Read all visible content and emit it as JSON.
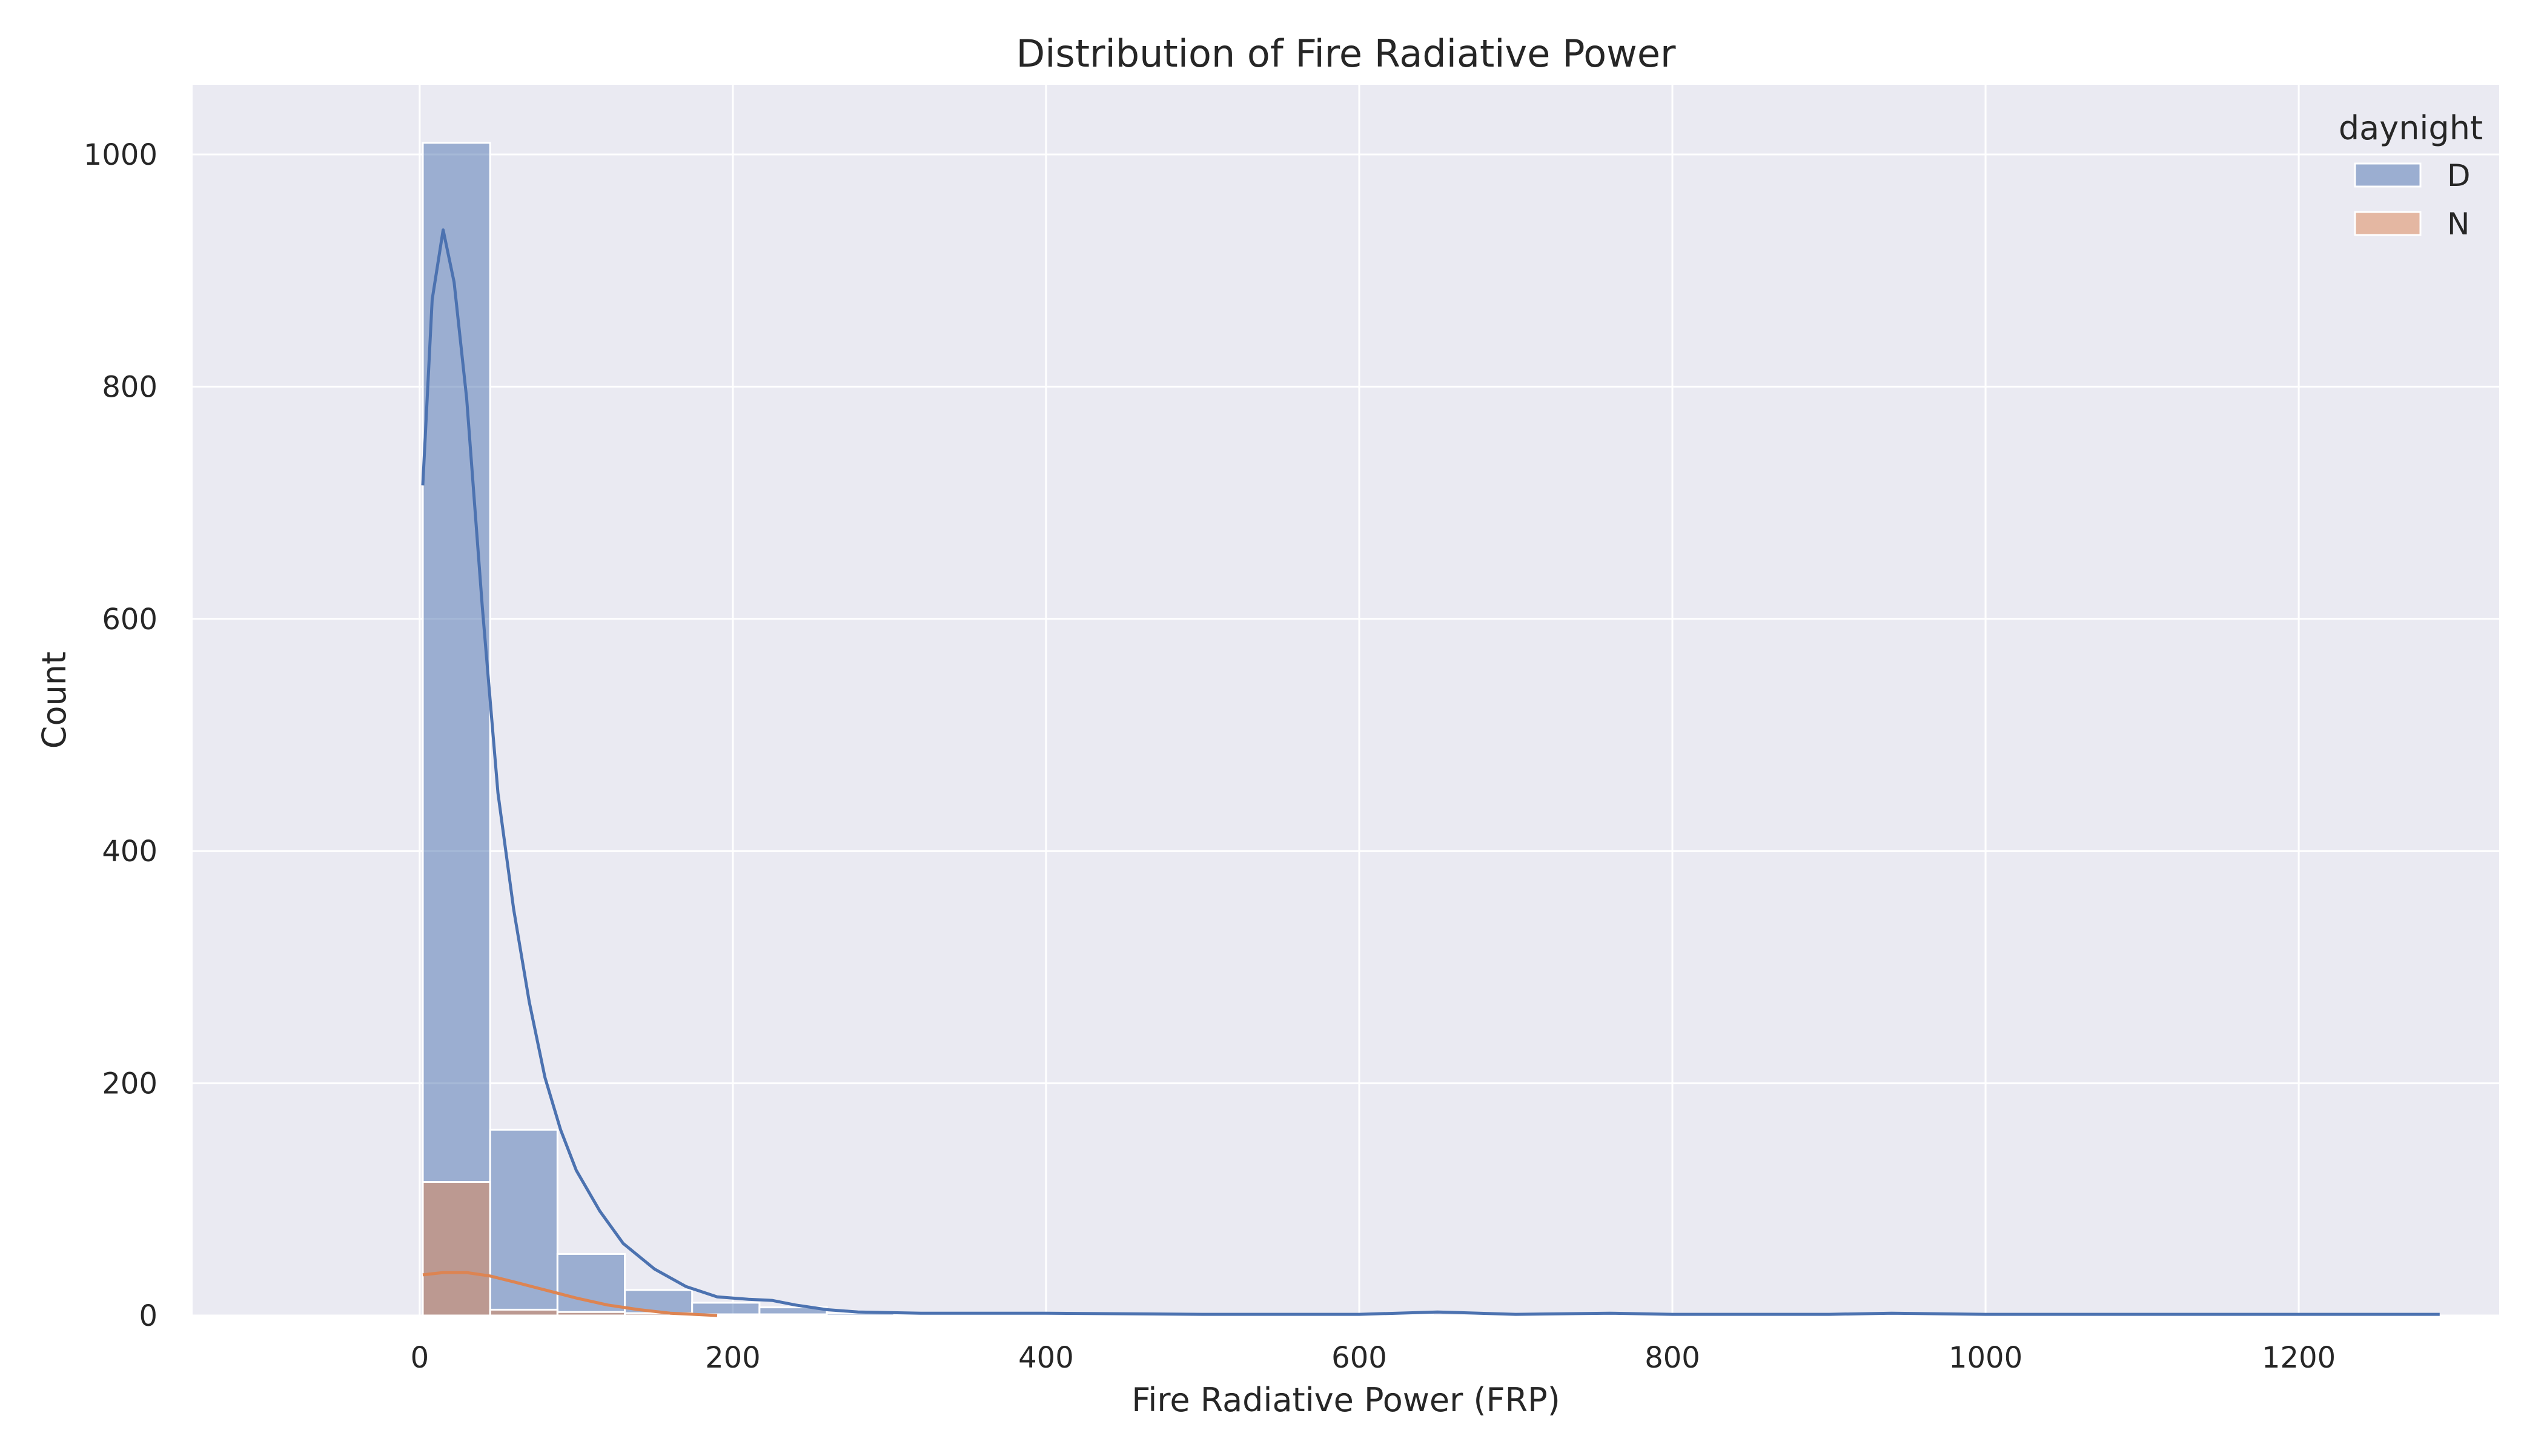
{
  "chart_data": {
    "type": "histogram",
    "title": "Distribution of Fire Radiative Power",
    "xlabel": "Fire Radiative Power (FRP)",
    "ylabel": "Count",
    "xlim": [
      -145,
      1328
    ],
    "ylim": [
      0,
      1060
    ],
    "xticks": [
      0,
      200,
      400,
      600,
      800,
      1000,
      1200
    ],
    "yticks": [
      0,
      200,
      400,
      600,
      800,
      1000
    ],
    "grid": true,
    "legend": {
      "title": "daynight",
      "placement": "top-right"
    },
    "bin_width": 43,
    "bin_start": 2,
    "series": [
      {
        "name": "D",
        "color": "#4c72b0",
        "counts": [
          1010,
          160,
          53,
          22,
          11,
          7,
          2,
          1,
          1,
          1,
          1,
          1,
          1,
          0,
          1,
          0,
          1,
          0,
          0,
          0,
          0,
          0,
          1,
          0,
          0,
          0,
          0,
          0,
          0,
          0
        ],
        "kde": [
          [
            2,
            715
          ],
          [
            8,
            875
          ],
          [
            15,
            935
          ],
          [
            22,
            890
          ],
          [
            30,
            790
          ],
          [
            40,
            610
          ],
          [
            50,
            450
          ],
          [
            60,
            350
          ],
          [
            70,
            270
          ],
          [
            80,
            205
          ],
          [
            90,
            160
          ],
          [
            100,
            125
          ],
          [
            115,
            90
          ],
          [
            130,
            62
          ],
          [
            150,
            40
          ],
          [
            170,
            25
          ],
          [
            190,
            16
          ],
          [
            210,
            14
          ],
          [
            225,
            13
          ],
          [
            240,
            9
          ],
          [
            260,
            5
          ],
          [
            280,
            3
          ],
          [
            320,
            2
          ],
          [
            400,
            2
          ],
          [
            500,
            1
          ],
          [
            600,
            1
          ],
          [
            650,
            3
          ],
          [
            700,
            1
          ],
          [
            760,
            2
          ],
          [
            800,
            1
          ],
          [
            900,
            1
          ],
          [
            940,
            2
          ],
          [
            1000,
            1
          ],
          [
            1100,
            1
          ],
          [
            1200,
            1
          ],
          [
            1290,
            1
          ]
        ]
      },
      {
        "name": "N",
        "color": "#dd8452",
        "counts": [
          115,
          5,
          3,
          2,
          1,
          1,
          0,
          0,
          0,
          0,
          0,
          0,
          0,
          0,
          0,
          0,
          0,
          0,
          0,
          0,
          0,
          0,
          0,
          0,
          0,
          0,
          0,
          0,
          0,
          0
        ],
        "kde": [
          [
            2,
            35
          ],
          [
            15,
            37
          ],
          [
            30,
            37
          ],
          [
            45,
            34
          ],
          [
            60,
            29
          ],
          [
            80,
            22
          ],
          [
            100,
            15
          ],
          [
            120,
            9
          ],
          [
            140,
            5
          ],
          [
            160,
            2
          ],
          [
            175,
            1
          ],
          [
            190,
            0
          ]
        ]
      }
    ]
  }
}
